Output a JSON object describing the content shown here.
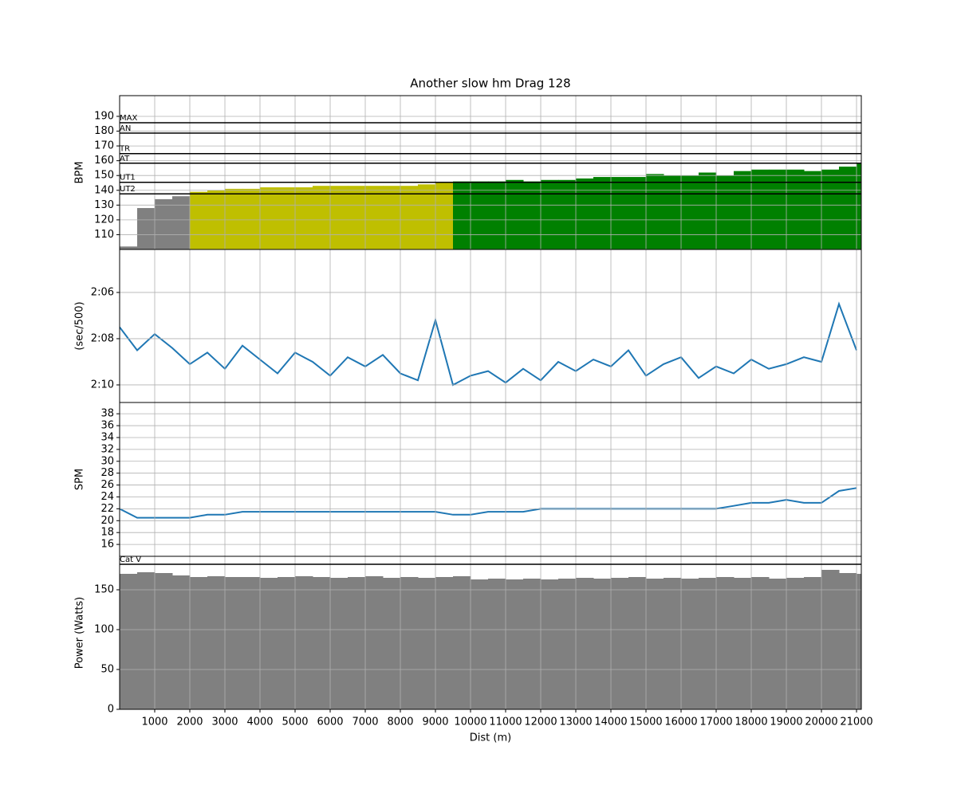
{
  "chart_data": [
    {
      "type": "bar",
      "title": "Another slow hm Drag 128",
      "ylabel": "BPM",
      "color": "#808080",
      "x": [
        0,
        500,
        1000,
        1500,
        2000,
        2500,
        3000,
        3500,
        4000,
        4500,
        5000,
        5500,
        6000,
        6500,
        7000,
        7500,
        8000,
        8500,
        9000,
        9500,
        10000,
        10500,
        11000,
        11500,
        12000,
        12500,
        13000,
        13500,
        14000,
        14500,
        15000,
        15500,
        16000,
        16500,
        17000,
        17500,
        18000,
        18500,
        19000,
        19500,
        20000,
        20500,
        21000
      ],
      "values": [
        102,
        128,
        134,
        136,
        139,
        140,
        141,
        141,
        142,
        142,
        142,
        143,
        143,
        143,
        143,
        143,
        143,
        144,
        145,
        146,
        146,
        146,
        147,
        146,
        147,
        147,
        148,
        149,
        149,
        149,
        151,
        150,
        150,
        152,
        150,
        153,
        154,
        154,
        154,
        153,
        154,
        156,
        158
      ],
      "xlim": [
        0,
        21136
      ],
      "xticks": [
        1000,
        2000,
        3000,
        4000,
        5000,
        6000,
        7000,
        8000,
        9000,
        10000,
        11000,
        12000,
        13000,
        14000,
        15000,
        16000,
        17000,
        18000,
        19000,
        20000,
        21000
      ],
      "ylim": [
        100,
        204
      ],
      "yticks": [
        110,
        120,
        130,
        140,
        150,
        160,
        170,
        180,
        190
      ],
      "grid": true,
      "hlines": [
        {
          "label": "MAX",
          "value": 185.7
        },
        {
          "label": "AN",
          "value": 178.7
        },
        {
          "label": "TR",
          "value": 164.8
        },
        {
          "label": "AT",
          "value": 158.3
        },
        {
          "label": "UT1",
          "value": 145.4,
          "color": "#008000"
        },
        {
          "label": "UT2",
          "value": 137.6,
          "color": "#bfbf00"
        }
      ]
    },
    {
      "type": "line",
      "ylabel": "(sec/500)",
      "color": "#1f77b4",
      "x": [
        0,
        500,
        1000,
        1500,
        2000,
        2500,
        3000,
        3500,
        4000,
        4500,
        5000,
        5500,
        6000,
        6500,
        7000,
        7500,
        8000,
        8500,
        9000,
        9500,
        10000,
        10500,
        11000,
        11500,
        12000,
        12500,
        13000,
        13500,
        14000,
        14500,
        15000,
        15500,
        16000,
        16500,
        17000,
        17500,
        18000,
        18500,
        19000,
        19500,
        20000,
        20500,
        21000
      ],
      "values": [
        127.5,
        128.5,
        127.8,
        128.4,
        129.1,
        128.6,
        129.3,
        128.3,
        128.9,
        129.5,
        128.6,
        129.0,
        129.6,
        128.8,
        129.2,
        128.7,
        129.5,
        129.8,
        127.2,
        130.0,
        129.6,
        129.4,
        129.9,
        129.3,
        129.8,
        129.0,
        129.4,
        128.9,
        129.2,
        128.5,
        129.6,
        129.1,
        128.8,
        129.7,
        129.2,
        129.5,
        128.9,
        129.3,
        129.1,
        128.8,
        129.0,
        126.5,
        128.5
      ],
      "xlim": [
        0,
        21136
      ],
      "xticks": [
        1000,
        2000,
        3000,
        4000,
        5000,
        6000,
        7000,
        8000,
        9000,
        10000,
        11000,
        12000,
        13000,
        14000,
        15000,
        16000,
        17000,
        18000,
        19000,
        20000,
        21000
      ],
      "ylim": [
        130.76,
        124.14
      ],
      "yticks": [
        {
          "value": 126,
          "label": "2:06"
        },
        {
          "value": 128,
          "label": "2:08"
        },
        {
          "value": 130,
          "label": "2:10"
        }
      ],
      "grid": true
    },
    {
      "type": "line",
      "ylabel": "SPM",
      "color": "#1f77b4",
      "x": [
        0,
        500,
        1000,
        1500,
        2000,
        2500,
        3000,
        3500,
        4000,
        4500,
        5000,
        5500,
        6000,
        6500,
        7000,
        7500,
        8000,
        8500,
        9000,
        9500,
        10000,
        10500,
        11000,
        11500,
        12000,
        12500,
        13000,
        13500,
        14000,
        14500,
        15000,
        15500,
        16000,
        16500,
        17000,
        17500,
        18000,
        18500,
        19000,
        19500,
        20000,
        20500,
        21000
      ],
      "values": [
        22,
        20.5,
        20.5,
        20.5,
        20.5,
        21,
        21,
        21.5,
        21.5,
        21.5,
        21.5,
        21.5,
        21.5,
        21.5,
        21.5,
        21.5,
        21.5,
        21.5,
        21.5,
        21,
        21,
        21.5,
        21.5,
        21.5,
        22,
        22,
        22,
        22,
        22,
        22,
        22,
        22,
        22,
        22,
        22,
        22.5,
        23,
        23,
        23.5,
        23,
        23,
        25,
        25.5
      ],
      "xlim": [
        0,
        21136
      ],
      "xticks": [
        1000,
        2000,
        3000,
        4000,
        5000,
        6000,
        7000,
        8000,
        9000,
        10000,
        11000,
        12000,
        13000,
        14000,
        15000,
        16000,
        17000,
        18000,
        19000,
        20000,
        21000
      ],
      "ylim": [
        14,
        39.9
      ],
      "yticks": [
        16,
        18,
        20,
        22,
        24,
        26,
        28,
        30,
        32,
        34,
        36,
        38
      ],
      "grid": true
    },
    {
      "type": "bar",
      "ylabel": "Power (Watts)",
      "xlabel": "Dist (m)",
      "color": "#808080",
      "x": [
        0,
        500,
        1000,
        1500,
        2000,
        2500,
        3000,
        3500,
        4000,
        4500,
        5000,
        5500,
        6000,
        6500,
        7000,
        7500,
        8000,
        8500,
        9000,
        9500,
        10000,
        10500,
        11000,
        11500,
        12000,
        12500,
        13000,
        13500,
        14000,
        14500,
        15000,
        15500,
        16000,
        16500,
        17000,
        17500,
        18000,
        18500,
        19000,
        19500,
        20000,
        20500,
        21000
      ],
      "values": [
        170,
        172,
        171,
        168,
        166,
        167,
        166,
        166,
        165,
        166,
        167,
        166,
        165,
        166,
        167,
        165,
        166,
        165,
        166,
        167,
        163,
        164,
        163,
        164,
        163,
        164,
        165,
        164,
        165,
        166,
        164,
        165,
        164,
        165,
        166,
        165,
        166,
        164,
        165,
        166,
        175,
        171,
        170
      ],
      "xlim": [
        0,
        21136
      ],
      "xticks": [
        1000,
        2000,
        3000,
        4000,
        5000,
        6000,
        7000,
        8000,
        9000,
        10000,
        11000,
        12000,
        13000,
        14000,
        15000,
        16000,
        17000,
        18000,
        19000,
        20000,
        21000
      ],
      "ylim": [
        0,
        192
      ],
      "yticks": [
        0,
        50,
        100,
        150
      ],
      "grid": true,
      "hlines": [
        {
          "label": "Cat V",
          "value": 182
        }
      ]
    }
  ]
}
